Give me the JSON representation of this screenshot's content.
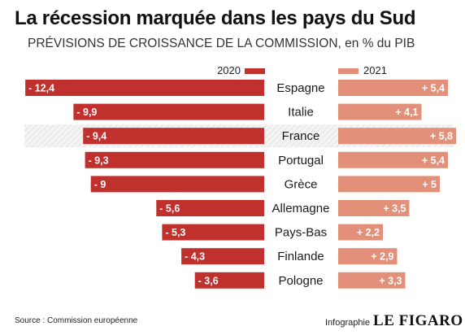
{
  "title": "La récession marquée dans les pays du Sud",
  "subtitle": "PRÉVISIONS DE CROISSANCE DE LA COMMISSION, en % du PIB",
  "source": "Source : Commission européenne",
  "credit": {
    "prefix": "Infographie",
    "brand": "LE FIGARO"
  },
  "colors": {
    "y2020": "#c0312e",
    "y2021": "#e2907a",
    "highlight": "#eeeeee",
    "label_text": "#ffffff"
  },
  "chart_data": {
    "type": "bar",
    "title": "La récession marquée dans les pays du Sud",
    "subtitle": "PRÉVISIONS DE CROISSANCE DE LA COMMISSION, en % du PIB",
    "categories": [
      "Espagne",
      "Italie",
      "France",
      "Portugal",
      "Grèce",
      "Allemagne",
      "Pays-Bas",
      "Finlande",
      "Pologne"
    ],
    "highlighted_category": "France",
    "series": [
      {
        "name": "2020",
        "values": [
          -12.4,
          -9.9,
          -9.4,
          -9.3,
          -9.0,
          -5.6,
          -5.3,
          -4.3,
          -3.6
        ],
        "labels": [
          "- 12,4",
          "- 9,9",
          "- 9,4",
          "- 9,3",
          "- 9",
          "- 5,6",
          "- 5,3",
          "- 4,3",
          "- 3,6"
        ]
      },
      {
        "name": "2021",
        "values": [
          5.4,
          4.1,
          5.8,
          5.4,
          5.0,
          3.5,
          2.2,
          2.9,
          3.3
        ],
        "labels": [
          "+ 5,4",
          "+ 4,1",
          "+ 5,8",
          "+ 5,4",
          "+ 5",
          "+ 3,5",
          "+ 2,2",
          "+ 2,9",
          "+ 3,3"
        ]
      }
    ],
    "legend": "top"
  }
}
